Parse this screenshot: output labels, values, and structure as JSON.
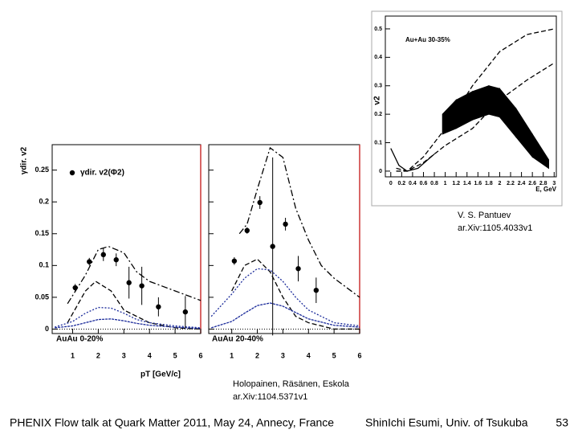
{
  "chart_data": [
    {
      "type": "scatter",
      "label": "AuAu 0-20%",
      "xlabel": "pT [GeV/c]",
      "ylabel": "γdir. v2",
      "xlim": [
        0.2,
        6
      ],
      "ylim": [
        -0.007,
        0.29
      ],
      "xticks": [
        1,
        2,
        3,
        4,
        5,
        6
      ],
      "yticks": [
        0,
        0.05,
        0.1,
        0.15,
        0.2,
        0.25
      ],
      "ytick_labels": true,
      "series": [
        {
          "name": "γdir. v2(Φ2)",
          "color": "#000000",
          "x": [
            1.1,
            1.65,
            2.2,
            2.7,
            3.2,
            3.7,
            4.35,
            5.4
          ],
          "values": [
            0.065,
            0.106,
            0.117,
            0.109,
            0.073,
            0.068,
            0.035,
            0.027
          ],
          "errors": [
            0.006,
            0.006,
            0.01,
            0.01,
            0.025,
            0.03,
            0.015,
            0.025
          ]
        }
      ],
      "lines": [
        {
          "color": "#000000",
          "dash": "8 3 2 3",
          "x": [
            0.8,
            1.5,
            2,
            2.4,
            3,
            3.5,
            4,
            5,
            6
          ],
          "values": [
            0.04,
            0.085,
            0.125,
            0.13,
            0.12,
            0.09,
            0.075,
            0.06,
            0.045
          ]
        },
        {
          "color": "#000000",
          "dash": "6 3",
          "x": [
            0.8,
            1.5,
            1.9,
            2.5,
            3,
            4,
            5,
            6
          ],
          "values": [
            0.01,
            0.06,
            0.075,
            0.06,
            0.03,
            0.01,
            0.002,
            0
          ]
        },
        {
          "color": "#1a2a9a",
          "dash": "2 2",
          "x": [
            0.3,
            1,
            1.5,
            2,
            2.5,
            3,
            3.5,
            4,
            5,
            6
          ],
          "values": [
            0.003,
            0.012,
            0.025,
            0.034,
            0.033,
            0.025,
            0.015,
            0.01,
            0.005,
            0.002
          ]
        },
        {
          "color": "#1a2a9a",
          "dash": "3 1",
          "x": [
            0.3,
            1,
            1.5,
            2,
            2.5,
            3,
            3.5,
            4,
            5,
            6
          ],
          "values": [
            0.002,
            0.005,
            0.01,
            0.015,
            0.016,
            0.013,
            0.009,
            0.006,
            0.003,
            0.001
          ]
        }
      ]
    },
    {
      "type": "scatter",
      "label": "AuAu 20-40%",
      "xlim": [
        0.1,
        6
      ],
      "ylim": [
        -0.007,
        0.29
      ],
      "xticks": [
        1,
        2,
        3,
        4,
        5,
        6
      ],
      "yticks": [
        0,
        0.05,
        0.1,
        0.15,
        0.2,
        0.25
      ],
      "ytick_labels": false,
      "series": [
        {
          "color": "#000000",
          "x": [
            1.1,
            1.6,
            2.1,
            2.6,
            3.1,
            3.6,
            4.3
          ],
          "values": [
            0.107,
            0.155,
            0.199,
            0.13,
            0.165,
            0.095,
            0.061
          ],
          "errors": [
            0.006,
            0.005,
            0.01,
            0.14,
            0.01,
            0.02,
            0.02
          ]
        }
      ],
      "lines": [
        {
          "color": "#000000",
          "dash": "8 3 2 3",
          "x": [
            1.3,
            1.6,
            2,
            2.5,
            3,
            3.5,
            4,
            4.5,
            5,
            6
          ],
          "values": [
            0.15,
            0.165,
            0.22,
            0.285,
            0.27,
            0.19,
            0.14,
            0.1,
            0.08,
            0.05
          ]
        },
        {
          "color": "#000000",
          "dash": "6 3",
          "x": [
            1,
            1.5,
            2,
            2.5,
            3,
            3.5,
            4,
            5,
            6
          ],
          "values": [
            0.06,
            0.1,
            0.11,
            0.09,
            0.05,
            0.02,
            0.01,
            0,
            0
          ]
        },
        {
          "color": "#1a2a9a",
          "dash": "2 2",
          "x": [
            0.2,
            1,
            1.5,
            2,
            2.5,
            3,
            3.5,
            4,
            5,
            6
          ],
          "values": [
            0.02,
            0.055,
            0.08,
            0.095,
            0.093,
            0.075,
            0.05,
            0.03,
            0.01,
            0.005
          ]
        },
        {
          "color": "#1a2a9a",
          "dash": "3 1",
          "x": [
            0.2,
            1,
            1.5,
            2,
            2.5,
            3,
            3.5,
            4,
            5,
            6
          ],
          "values": [
            0.002,
            0.012,
            0.025,
            0.037,
            0.041,
            0.036,
            0.026,
            0.016,
            0.006,
            0.003
          ]
        }
      ]
    },
    {
      "type": "band",
      "label": "Au+Au 30-35%",
      "xlabel": "E, GeV",
      "ylabel": "v2",
      "xlim": [
        -0.1,
        3.04
      ],
      "ylim": [
        -0.02,
        0.545
      ],
      "xticks": [
        0,
        0.2,
        0.4,
        0.6,
        0.8,
        1,
        1.2,
        1.4,
        1.6,
        1.8,
        2,
        2.2,
        2.4,
        2.6,
        2.8,
        3
      ],
      "yticks": [
        0,
        0.1,
        0.2,
        0.3,
        0.4,
        0.5
      ],
      "ytick_labels": true,
      "band": {
        "color": "#000000",
        "x": [
          0.95,
          1.2,
          1.5,
          1.8,
          2,
          2.3,
          2.6,
          2.9
        ],
        "low": [
          0.13,
          0.15,
          0.18,
          0.2,
          0.19,
          0.12,
          0.05,
          0.01
        ],
        "high": [
          0.2,
          0.25,
          0.28,
          0.3,
          0.29,
          0.22,
          0.13,
          0.04
        ]
      },
      "lines": [
        {
          "color": "#000000",
          "dash": "6 3",
          "x": [
            0.1,
            0.3,
            0.6,
            1,
            1.5,
            2,
            2.5,
            3
          ],
          "values": [
            0.01,
            0,
            0.05,
            0.15,
            0.3,
            0.42,
            0.48,
            0.5
          ]
        },
        {
          "color": "#000000",
          "dash": "6 3",
          "x": [
            0.1,
            0.3,
            0.6,
            1,
            1.5,
            2,
            2.5,
            3
          ],
          "values": [
            0,
            0,
            0.03,
            0.09,
            0.15,
            0.25,
            0.32,
            0.38
          ]
        },
        {
          "color": "#000000",
          "dash": "",
          "x": [
            0,
            0.15,
            0.3,
            0.5,
            0.8
          ],
          "values": [
            0.08,
            0.02,
            0,
            0.01,
            0.06
          ]
        }
      ]
    }
  ],
  "credits": [
    {
      "author": "V. S. Pantuev",
      "ref": "ar.Xiv:1105.4033v1"
    },
    {
      "author": "Holopainen, Räsänen, Eskola",
      "ref": "ar.Xiv:1104.5371v1"
    }
  ],
  "footer": {
    "left": "PHENIX Flow talk at Quark Matter 2011, May 24, Annecy, France",
    "center": "ShinIchi Esumi, Univ. of Tsukuba",
    "page": "53"
  }
}
